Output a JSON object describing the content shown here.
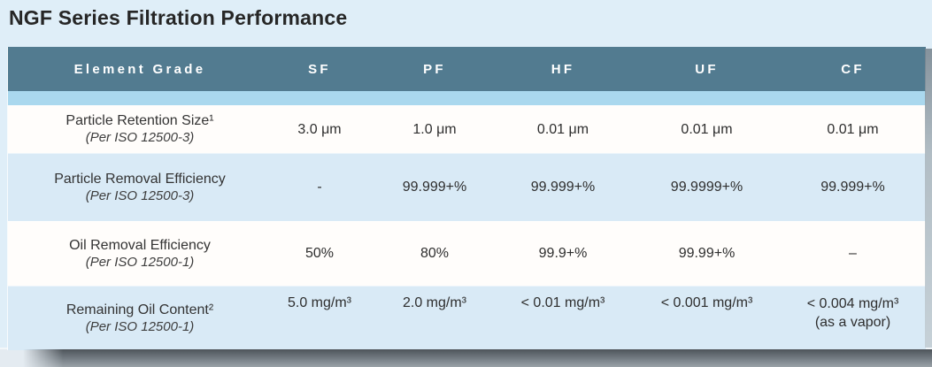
{
  "title": "NGF Series Filtration Performance",
  "table": {
    "columns": [
      "Element Grade",
      "SF",
      "PF",
      "HF",
      "UF",
      "CF"
    ],
    "rows": [
      {
        "label": "Particle Retention Size¹",
        "sublabel": "(Per ISO 12500-3)",
        "values": [
          "3.0 μm",
          "1.0 μm",
          "0.01 μm",
          "0.01 μm",
          "0.01 μm"
        ]
      },
      {
        "label": "Particle Removal Efficiency",
        "sublabel": "(Per ISO 12500-3)",
        "values": [
          "-",
          "99.999+%",
          "99.999+%",
          "99.9999+%",
          "99.999+%"
        ]
      },
      {
        "label": "Oil Removal Efficiency",
        "sublabel": "(Per ISO 12500-1)",
        "values": [
          "50%",
          "80%",
          "99.9+%",
          "99.99+%",
          "–"
        ]
      },
      {
        "label": "Remaining Oil Content²",
        "sublabel": "(Per ISO 12500-1)",
        "values": [
          "5.0 mg/m³",
          "2.0 mg/m³",
          "< 0.01 mg/m³",
          "< 0.001 mg/m³",
          "< 0.004 mg/m³"
        ],
        "value_note": "(as a vapor)"
      }
    ]
  },
  "colors": {
    "card_bg": "#dfeef8",
    "header_bg": "#527b90",
    "header_text": "#ffffff",
    "accent_band": "#aad8ee",
    "row_blue_bg": "#d9eaf6",
    "row_white_bg": "#fffdfb",
    "title_text": "#262626",
    "body_text": "#2e2e2e"
  }
}
